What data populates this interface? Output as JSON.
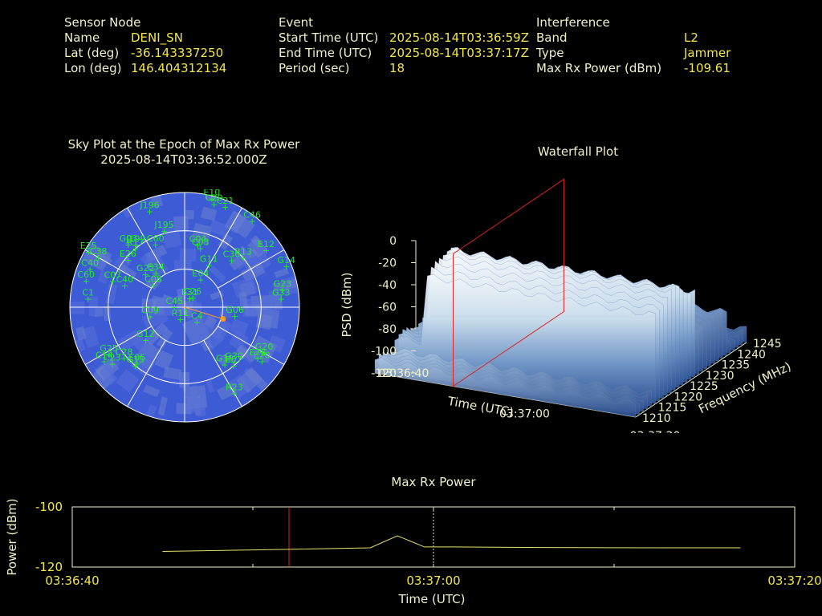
{
  "header": {
    "sensor": {
      "title": "Sensor Node",
      "rows": [
        {
          "label": "Name",
          "value": "DENI_SN"
        },
        {
          "label": "Lat (deg)",
          "value": "-36.143337250"
        },
        {
          "label": "Lon (deg)",
          "value": "146.404312134"
        }
      ]
    },
    "event": {
      "title": "Event",
      "rows": [
        {
          "label": "Start Time (UTC)",
          "value": "2025-08-14T03:36:59Z"
        },
        {
          "label": "End Time (UTC)",
          "value": "2025-08-14T03:37:17Z"
        },
        {
          "label": "Period (sec)",
          "value": "18"
        }
      ]
    },
    "interference": {
      "title": "Interference",
      "rows": [
        {
          "label": "Band",
          "value": "L2"
        },
        {
          "label": "Type",
          "value": "Jammer"
        },
        {
          "label": "Max Rx Power (dBm)",
          "value": "-109.61"
        }
      ]
    }
  },
  "colors": {
    "label": "#f2f0c8",
    "value": "#f2e64a",
    "sat": "#22ee22",
    "sky_bg": "#3e5bd6",
    "marker": "#ff9a22",
    "cursor": "#dd2222"
  },
  "chart_data": [
    {
      "type": "scatter",
      "title": "Sky Plot at the Epoch of Max Rx Power",
      "subtitle": "2025-08-14T03:36:52.000Z",
      "satellites": [
        {
          "id": "J196",
          "az": 340,
          "el": 10
        },
        {
          "id": "E10",
          "az": 14,
          "el": 2
        },
        {
          "id": "C20",
          "az": 16,
          "el": 6
        },
        {
          "id": "C21",
          "az": 22,
          "el": 5
        },
        {
          "id": "C46",
          "az": 38,
          "el": 4
        },
        {
          "id": "J195",
          "az": 345,
          "el": 28
        },
        {
          "id": "E25",
          "az": 300,
          "el": 3
        },
        {
          "id": "R17",
          "az": 320,
          "el": 30
        },
        {
          "id": "C60",
          "az": 335,
          "el": 36
        },
        {
          "id": "C04",
          "az": 12,
          "el": 40
        },
        {
          "id": "C03",
          "az": 15,
          "el": 42
        },
        {
          "id": "G03",
          "az": 318,
          "el": 24
        },
        {
          "id": "J199",
          "az": 322,
          "el": 28
        },
        {
          "id": "E12",
          "az": 55,
          "el": 12
        },
        {
          "id": "G14",
          "az": 68,
          "el": 4
        },
        {
          "id": "C38",
          "az": 300,
          "el": 12
        },
        {
          "id": "C40",
          "az": 292,
          "el": 10
        },
        {
          "id": "C60",
          "az": 285,
          "el": 10
        },
        {
          "id": "E26",
          "az": 310,
          "el": 32
        },
        {
          "id": "G11",
          "az": 30,
          "el": 52
        },
        {
          "id": "C36",
          "az": 45,
          "el": 38
        },
        {
          "id": "R13",
          "az": 50,
          "el": 30
        },
        {
          "id": "E34",
          "az": 320,
          "el": 55
        },
        {
          "id": "E04",
          "az": 30,
          "el": 65
        },
        {
          "id": "C1",
          "az": 275,
          "el": 14
        },
        {
          "id": "C07",
          "az": 290,
          "el": 30
        },
        {
          "id": "G22",
          "az": 310,
          "el": 50
        },
        {
          "id": "C40",
          "az": 290,
          "el": 40
        },
        {
          "id": "C08",
          "az": 305,
          "el": 60
        },
        {
          "id": "G23",
          "az": 80,
          "el": 12
        },
        {
          "id": "G33",
          "az": 85,
          "el": 14
        },
        {
          "id": "E31",
          "az": 30,
          "el": 82
        },
        {
          "id": "C26",
          "az": 40,
          "el": 80
        },
        {
          "id": "G06",
          "az": 100,
          "el": 50
        },
        {
          "id": "C09",
          "az": 255,
          "el": 62
        },
        {
          "id": "C45",
          "az": 270,
          "el": 82
        },
        {
          "id": "R11",
          "az": 200,
          "el": 80
        },
        {
          "id": "C4",
          "az": 140,
          "el": 75
        },
        {
          "id": "G12",
          "az": 230,
          "el": 50
        },
        {
          "id": "G19",
          "az": 145,
          "el": 35
        },
        {
          "id": "E28",
          "az": 125,
          "el": 20
        },
        {
          "id": "G20",
          "az": 120,
          "el": 18
        },
        {
          "id": "G30",
          "az": 138,
          "el": 32
        },
        {
          "id": "E07",
          "az": 140,
          "el": 30
        },
        {
          "id": "E20",
          "az": 125,
          "el": 16
        },
        {
          "id": "G25",
          "az": 238,
          "el": 20
        },
        {
          "id": "C28",
          "az": 230,
          "el": 28
        },
        {
          "id": "G15",
          "az": 220,
          "el": 30
        },
        {
          "id": "E05",
          "az": 220,
          "el": 32
        },
        {
          "id": "C23",
          "az": 232,
          "el": 18
        },
        {
          "id": "C14",
          "az": 236,
          "el": 14
        },
        {
          "id": "R23",
          "az": 150,
          "el": 12
        }
      ],
      "max_power_direction_az": 107
    },
    {
      "type": "area",
      "title": "Waterfall Plot",
      "xlabel": "Time (UTC)",
      "ylabel": "Frequency (MHz)",
      "zlabel": "PSD (dBm)",
      "x_ticks": [
        "03:36:40",
        "03:37:00",
        "03:37:20"
      ],
      "y_ticks": [
        "1210",
        "1215",
        "1220",
        "1225",
        "1230",
        "1235",
        "1240",
        "1245"
      ],
      "z_ticks": [
        "0",
        "-20",
        "-40",
        "-60",
        "-80",
        "-100",
        "-120"
      ],
      "zlim": [
        -120,
        0
      ],
      "ylim": [
        1210,
        1245
      ],
      "cursor_time": "03:36:52"
    },
    {
      "type": "line",
      "title": "Max Rx Power",
      "xlabel": "Time (UTC)",
      "ylabel": "Power (dBm)",
      "x_ticks": [
        "03:36:40",
        "03:37:00",
        "03:37:20"
      ],
      "y_ticks": [
        "-100",
        "-120"
      ],
      "x_range_sec": [
        0,
        40
      ],
      "ylim": [
        -120,
        -100
      ],
      "x": [
        5,
        11,
        16.5,
        18,
        19.5,
        21,
        26,
        33,
        37
      ],
      "y": [
        -114.8,
        -114.2,
        -113.6,
        -109.6,
        -113.3,
        -113.3,
        -113.5,
        -113.6,
        -113.6
      ],
      "cursor_sec": 12,
      "dashed_sec": 20
    }
  ]
}
